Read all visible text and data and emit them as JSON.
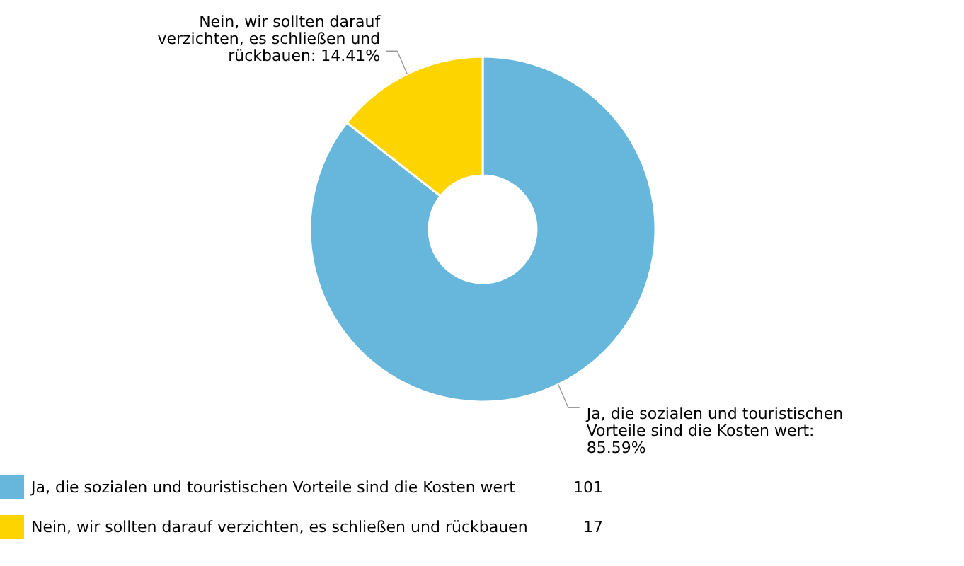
{
  "chart_data": {
    "type": "donut",
    "categories": [
      "Ja, die sozialen und touristischen Vorteile sind die Kosten wert",
      "Nein, wir sollten darauf verzichten, es schließen und rückbauen"
    ],
    "values": [
      85.59,
      14.41
    ],
    "colors": [
      "#67b7dc",
      "#fdd400"
    ],
    "value_labels": [
      "Ja, die sozialen und touristischen Vorteile sind die Kosten wert: 85.59%",
      "Nein, wir sollten darauf verzichten, es schließen und rückbauen: 14.41%"
    ],
    "annotations": [
      "101",
      "17"
    ],
    "legend": "bottom left"
  }
}
